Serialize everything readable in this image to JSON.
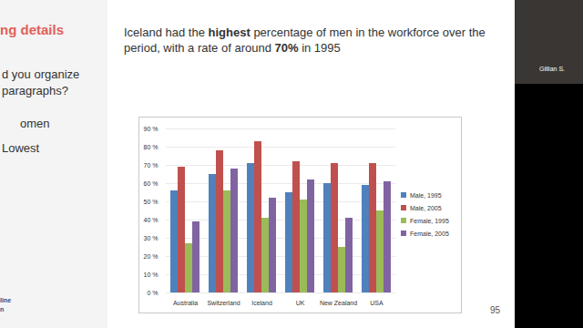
{
  "slide": {
    "side_title": "ng details",
    "side_lines": [
      "d you organize",
      "paragraphs?",
      "omen",
      "Lowest"
    ],
    "side_footer": [
      "line",
      "n"
    ],
    "heading": [
      {
        "text": "Iceland had the "
      },
      {
        "text": "highest",
        "bold": true
      },
      {
        "text": " percentage of men in the workforce over the period, with a rate of around "
      },
      {
        "text": "70%",
        "bold": true
      },
      {
        "text": " in 1995"
      }
    ],
    "page_number": "95",
    "participant": "Gillian S."
  },
  "chart_data": {
    "type": "bar",
    "categories": [
      "Australia",
      "Switzerland",
      "Iceland",
      "UK",
      "New Zealand",
      "USA"
    ],
    "series": [
      {
        "name": "Male, 1995",
        "color": "#4f81bd",
        "values": [
          56,
          65,
          71,
          55,
          60,
          59
        ]
      },
      {
        "name": "Male, 2005",
        "color": "#c0504d",
        "values": [
          69,
          78,
          83,
          72,
          71,
          71
        ]
      },
      {
        "name": "Female, 1995",
        "color": "#9bbb59",
        "values": [
          27,
          56,
          41,
          51,
          25,
          45
        ]
      },
      {
        "name": "Female, 2005",
        "color": "#8064a2",
        "values": [
          39,
          68,
          52,
          62,
          41,
          61
        ]
      }
    ],
    "ylim": [
      0,
      90
    ],
    "yticks": [
      {
        "value": 0,
        "label": "0 %"
      },
      {
        "value": 10,
        "label": "10 %"
      },
      {
        "value": 20,
        "label": "20 %"
      },
      {
        "value": 30,
        "label": "30 %"
      },
      {
        "value": 40,
        "label": "40 %"
      },
      {
        "value": 50,
        "label": "50 %"
      },
      {
        "value": 60,
        "label": "60 %"
      },
      {
        "value": 70,
        "label": "70 %"
      },
      {
        "value": 80,
        "label": "80 %"
      },
      {
        "value": 90,
        "label": "90 %"
      }
    ],
    "grid": true,
    "legend": "right"
  }
}
